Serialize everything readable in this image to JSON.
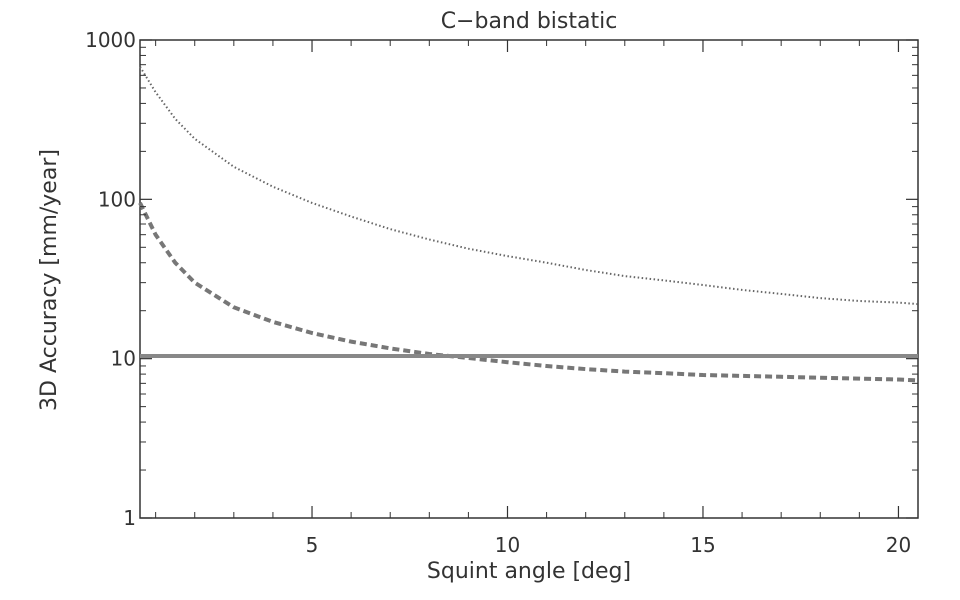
{
  "chart_data": {
    "type": "line",
    "title": "C−band bistatic",
    "xlabel": "Squint angle [deg]",
    "ylabel": "3D Accuracy [mm/year]",
    "xlim": [
      0.6,
      20.5
    ],
    "ylim": [
      1,
      1000
    ],
    "yscale": "log",
    "grid": false,
    "x_ticks": [
      5,
      10,
      15,
      20
    ],
    "x_tick_labels": [
      "5",
      "10",
      "15",
      "20"
    ],
    "y_ticks": [
      1,
      10,
      100,
      1000
    ],
    "y_tick_labels": [
      "1",
      "10",
      "100",
      "1000"
    ],
    "series": [
      {
        "style": "dotted",
        "color": "#666666",
        "x": [
          0.6,
          1,
          1.5,
          2,
          3,
          4,
          5,
          6,
          7,
          8,
          9,
          10,
          11,
          12,
          13,
          14,
          15,
          16,
          17,
          18,
          19,
          20,
          20.5
        ],
        "y": [
          680,
          470,
          320,
          240,
          160,
          120,
          95,
          78,
          65,
          56,
          49,
          44,
          40,
          36,
          33,
          31,
          29,
          27,
          25.5,
          24,
          23,
          22.5,
          22
        ]
      },
      {
        "style": "dashed",
        "color": "#777777",
        "x": [
          0.6,
          1,
          1.5,
          2,
          3,
          4,
          5,
          6,
          7,
          8,
          9,
          10,
          11,
          12,
          13,
          14,
          15,
          16,
          17,
          18,
          19,
          20,
          20.5
        ],
        "y": [
          95,
          60,
          40,
          30,
          21,
          17,
          14.5,
          12.8,
          11.6,
          10.7,
          10.1,
          9.5,
          9.0,
          8.6,
          8.3,
          8.1,
          7.9,
          7.8,
          7.7,
          7.6,
          7.5,
          7.4,
          7.3
        ]
      },
      {
        "style": "solid",
        "color": "#888888",
        "x": [
          0.6,
          20.5
        ],
        "y": [
          10.4,
          10.4
        ]
      }
    ]
  }
}
